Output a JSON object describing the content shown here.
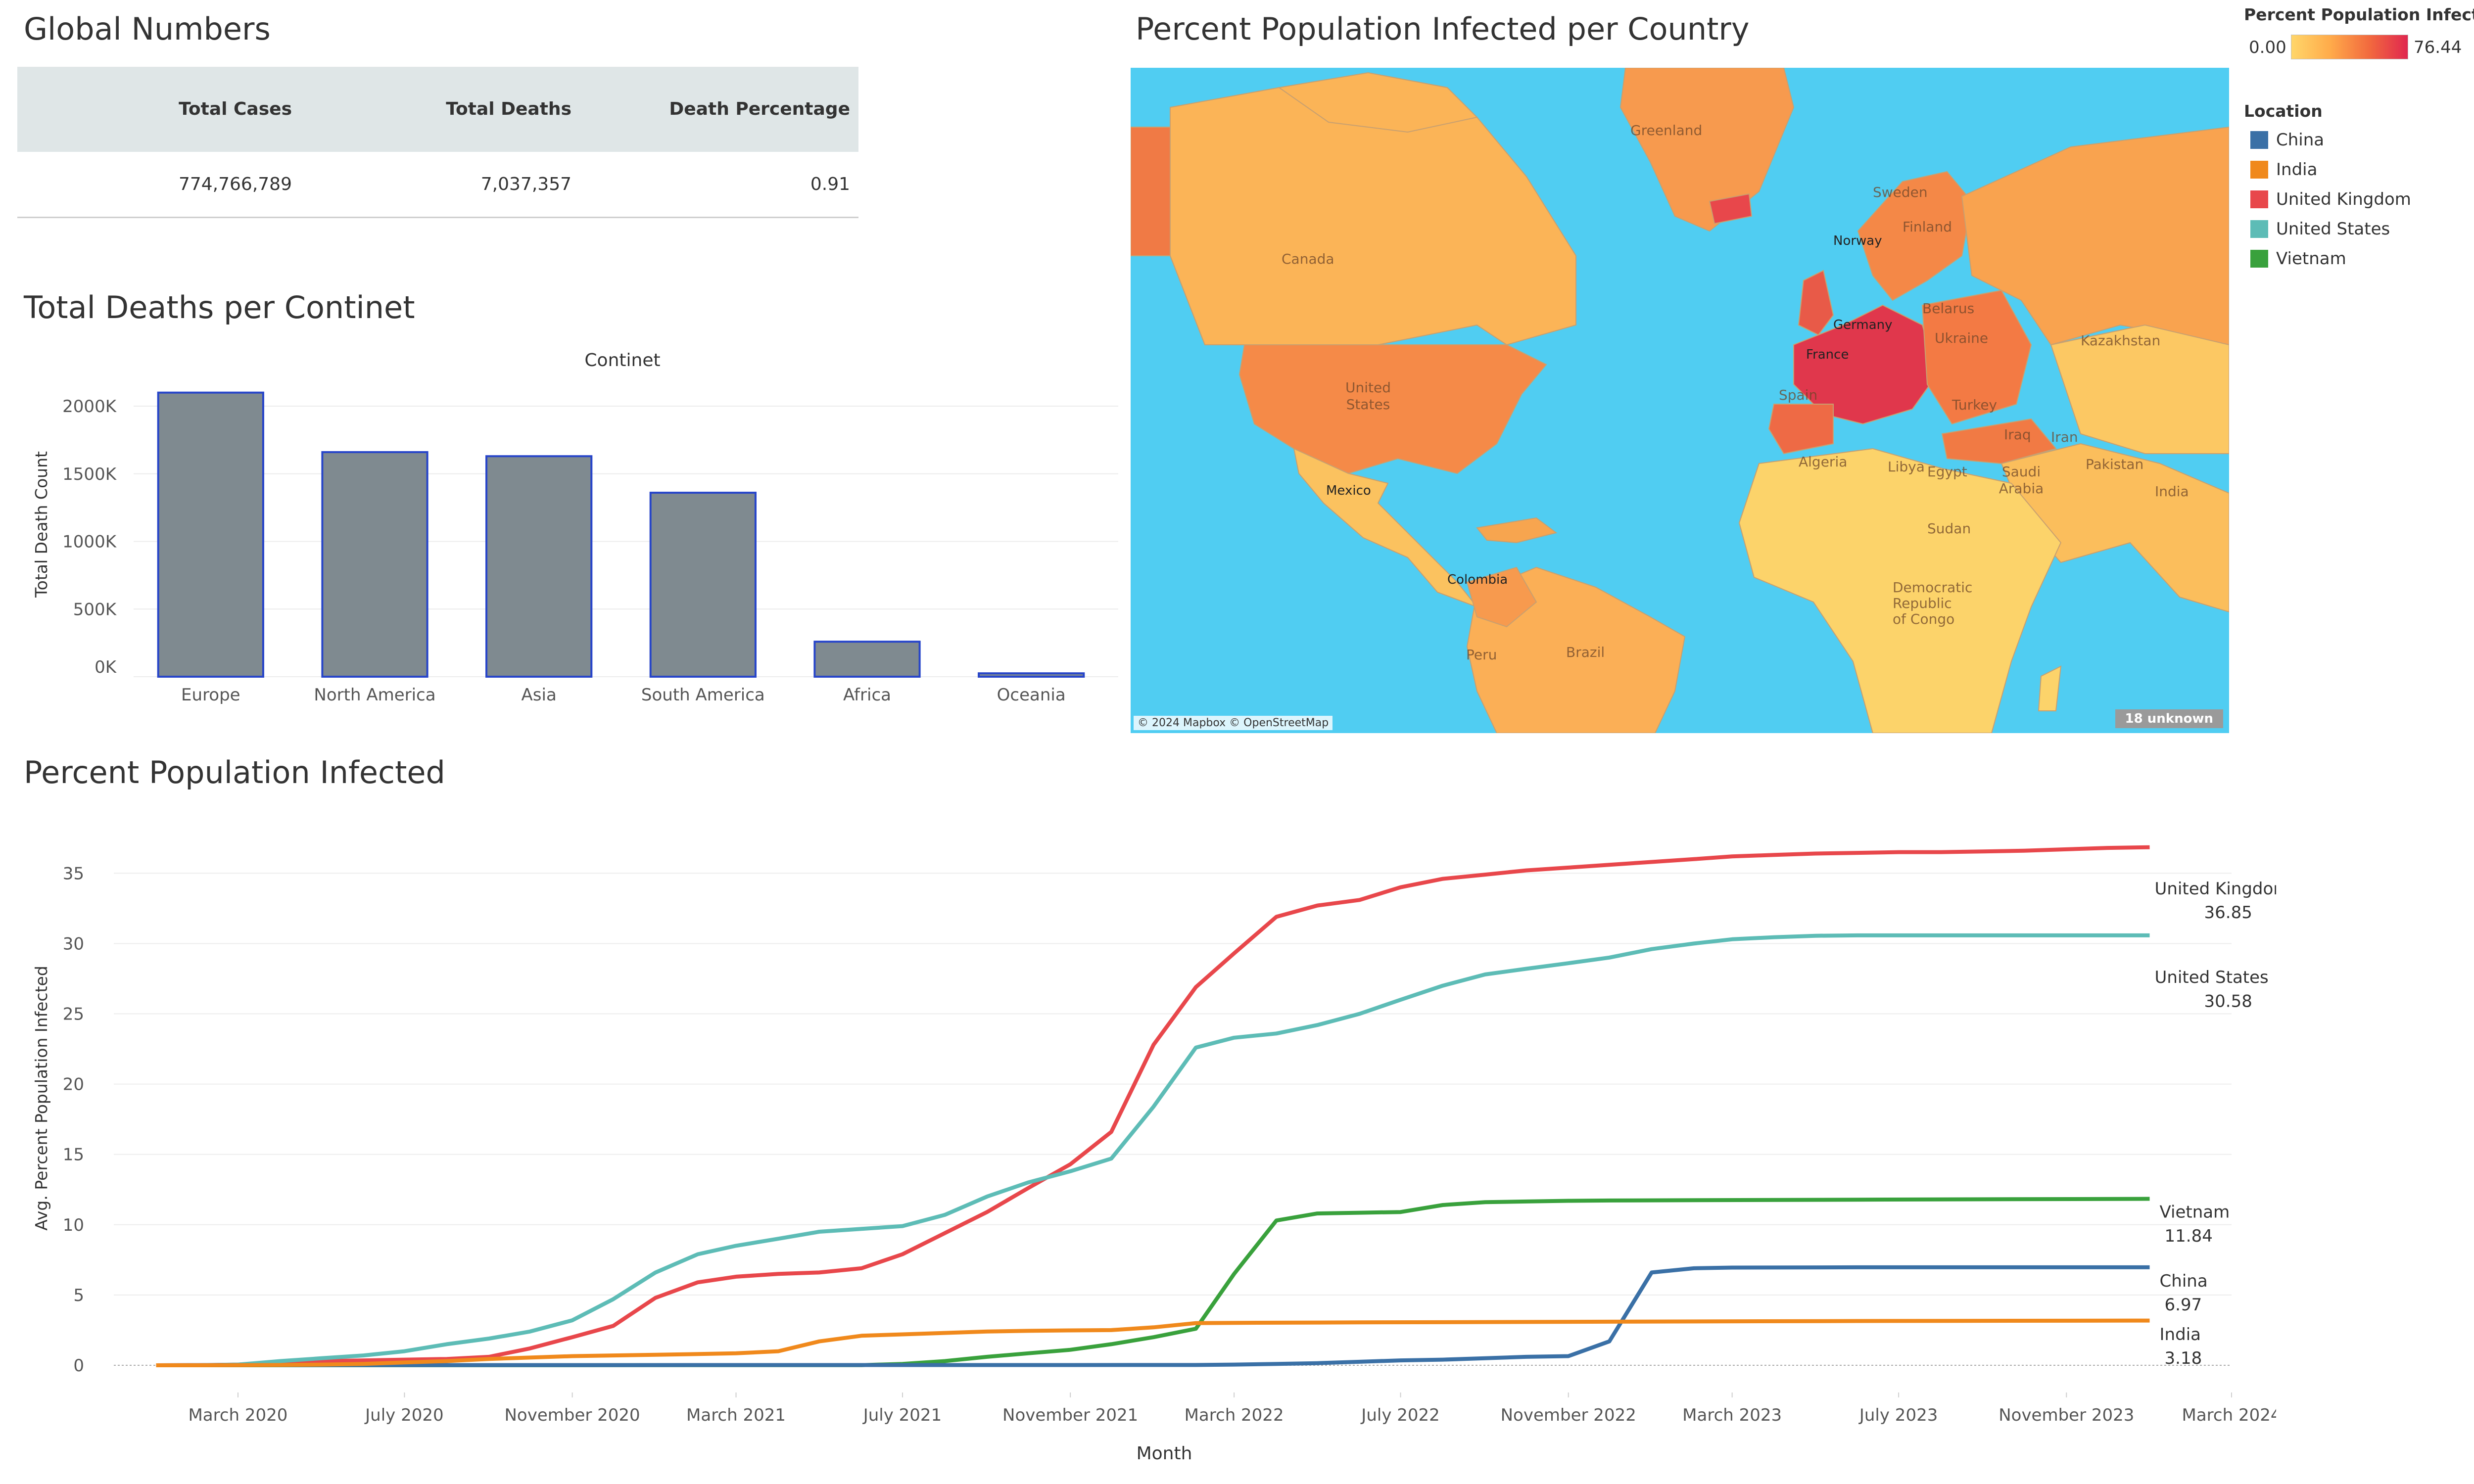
{
  "global_numbers": {
    "title": "Global Numbers",
    "headers": [
      "Total Cases",
      "Total Deaths",
      "Death Percentage"
    ],
    "values": [
      "774,766,789",
      "7,037,357",
      "0.91"
    ]
  },
  "map": {
    "title": "Percent Population Infected per Country",
    "attribution": "© 2024 Mapbox © OpenStreetMap",
    "unknown_badge": "18 unknown",
    "country_labels": [
      "Greenland",
      "Canada",
      "United States",
      "Mexico",
      "Colombia",
      "Peru",
      "Brazil",
      "Sweden",
      "Norway",
      "Finland",
      "Belarus",
      "Germany",
      "Ukraine",
      "France",
      "Spain",
      "Turkey",
      "Algeria",
      "Libya",
      "Egypt",
      "Sudan",
      "Iraq",
      "Iran",
      "Saudi Arabia",
      "Kazakhstan",
      "Pakistan",
      "India",
      "Democratic Republic of Congo"
    ]
  },
  "color_legend": {
    "title": "Percent Population Infect..",
    "min": "0.00",
    "max": "76.44",
    "colors": [
      "#ffd66a",
      "#ffab4a",
      "#f26a3e",
      "#e0274f"
    ]
  },
  "location_legend": {
    "title": "Location",
    "items": [
      {
        "label": "China",
        "color": "#3a70a6"
      },
      {
        "label": "India",
        "color": "#f0891c"
      },
      {
        "label": "United Kingdom",
        "color": "#e8474b"
      },
      {
        "label": "United States",
        "color": "#5dbcb6"
      },
      {
        "label": "Vietnam",
        "color": "#39a13c"
      }
    ]
  },
  "chart_data": [
    {
      "type": "bar",
      "title": "Total Deaths per Continet",
      "header": "Continet",
      "ylabel": "Total Death Count",
      "categories": [
        "Europe",
        "North America",
        "Asia",
        "South America",
        "Africa",
        "Oceania"
      ],
      "values": [
        2100000,
        1660000,
        1630000,
        1360000,
        259000,
        25000
      ],
      "ylim": [
        0,
        2150000
      ],
      "yticks": [
        0,
        500000,
        1000000,
        1500000,
        2000000
      ],
      "ytick_labels": [
        "0K",
        "500K",
        "1000K",
        "1500K",
        "2000K"
      ],
      "bar_color": "#7f8a90",
      "bar_edge_color": "#2745c9"
    },
    {
      "type": "line",
      "title": "Percent Population Infected",
      "xlabel": "Month",
      "ylabel": "Avg. Percent Population Infected",
      "ylim": [
        0,
        38
      ],
      "yticks": [
        0,
        5,
        10,
        15,
        20,
        25,
        30,
        35
      ],
      "x_ticks": [
        "2020-03-01",
        "2020-07-01",
        "2020-11-01",
        "2021-03-01",
        "2021-07-01",
        "2021-11-01",
        "2022-03-01",
        "2022-07-01",
        "2022-11-01",
        "2023-03-01",
        "2023-07-01",
        "2023-11-01",
        "2024-03-01"
      ],
      "x_tick_labels": [
        "March 2020",
        "July 2020",
        "November 2020",
        "March 2021",
        "July 2021",
        "November 2021",
        "March 2022",
        "July 2022",
        "November 2022",
        "March 2023",
        "July 2023",
        "November 2023",
        "March 2024"
      ],
      "xlim": [
        "2019-12-01",
        "2024-03-01"
      ],
      "series": [
        {
          "name": "United Kingdom",
          "color": "#e8474b",
          "end_label": "36.85",
          "points": [
            [
              "2020-01-01",
              0
            ],
            [
              "2020-02-01",
              0.01
            ],
            [
              "2020-03-01",
              0.05
            ],
            [
              "2020-04-01",
              0.2
            ],
            [
              "2020-05-01",
              0.3
            ],
            [
              "2020-06-01",
              0.35
            ],
            [
              "2020-07-01",
              0.4
            ],
            [
              "2020-08-01",
              0.45
            ],
            [
              "2020-09-01",
              0.6
            ],
            [
              "2020-10-01",
              1.2
            ],
            [
              "2020-11-01",
              2.0
            ],
            [
              "2020-12-01",
              2.8
            ],
            [
              "2021-01-01",
              4.8
            ],
            [
              "2021-02-01",
              5.9
            ],
            [
              "2021-03-01",
              6.3
            ],
            [
              "2021-04-01",
              6.5
            ],
            [
              "2021-05-01",
              6.6
            ],
            [
              "2021-06-01",
              6.9
            ],
            [
              "2021-07-01",
              7.9
            ],
            [
              "2021-08-01",
              9.4
            ],
            [
              "2021-09-01",
              10.9
            ],
            [
              "2021-10-01",
              12.6
            ],
            [
              "2021-11-01",
              14.3
            ],
            [
              "2021-12-01",
              16.6
            ],
            [
              "2022-01-01",
              22.8
            ],
            [
              "2022-02-01",
              26.9
            ],
            [
              "2022-03-01",
              29.3
            ],
            [
              "2022-04-01",
              31.9
            ],
            [
              "2022-05-01",
              32.7
            ],
            [
              "2022-06-01",
              33.1
            ],
            [
              "2022-07-01",
              34.0
            ],
            [
              "2022-08-01",
              34.6
            ],
            [
              "2022-09-01",
              34.9
            ],
            [
              "2022-10-01",
              35.2
            ],
            [
              "2022-11-01",
              35.4
            ],
            [
              "2022-12-01",
              35.6
            ],
            [
              "2023-01-01",
              35.8
            ],
            [
              "2023-02-01",
              36.0
            ],
            [
              "2023-03-01",
              36.2
            ],
            [
              "2023-04-01",
              36.3
            ],
            [
              "2023-05-01",
              36.4
            ],
            [
              "2023-06-01",
              36.45
            ],
            [
              "2023-07-01",
              36.5
            ],
            [
              "2023-08-01",
              36.5
            ],
            [
              "2023-09-01",
              36.55
            ],
            [
              "2023-10-01",
              36.6
            ],
            [
              "2023-11-01",
              36.7
            ],
            [
              "2023-12-01",
              36.8
            ],
            [
              "2024-01-01",
              36.85
            ]
          ]
        },
        {
          "name": "United States",
          "color": "#5dbcb6",
          "end_label": "30.58",
          "points": [
            [
              "2020-01-01",
              0
            ],
            [
              "2020-02-01",
              0
            ],
            [
              "2020-03-01",
              0.05
            ],
            [
              "2020-04-01",
              0.3
            ],
            [
              "2020-05-01",
              0.5
            ],
            [
              "2020-06-01",
              0.7
            ],
            [
              "2020-07-01",
              1.0
            ],
            [
              "2020-08-01",
              1.5
            ],
            [
              "2020-09-01",
              1.9
            ],
            [
              "2020-10-01",
              2.4
            ],
            [
              "2020-11-01",
              3.2
            ],
            [
              "2020-12-01",
              4.7
            ],
            [
              "2021-01-01",
              6.6
            ],
            [
              "2021-02-01",
              7.9
            ],
            [
              "2021-03-01",
              8.5
            ],
            [
              "2021-04-01",
              9.0
            ],
            [
              "2021-05-01",
              9.5
            ],
            [
              "2021-06-01",
              9.7
            ],
            [
              "2021-07-01",
              9.9
            ],
            [
              "2021-08-01",
              10.7
            ],
            [
              "2021-09-01",
              12.0
            ],
            [
              "2021-10-01",
              13.0
            ],
            [
              "2021-11-01",
              13.8
            ],
            [
              "2021-12-01",
              14.7
            ],
            [
              "2022-01-01",
              18.4
            ],
            [
              "2022-02-01",
              22.6
            ],
            [
              "2022-03-01",
              23.3
            ],
            [
              "2022-04-01",
              23.6
            ],
            [
              "2022-05-01",
              24.2
            ],
            [
              "2022-06-01",
              25.0
            ],
            [
              "2022-07-01",
              26.0
            ],
            [
              "2022-08-01",
              27.0
            ],
            [
              "2022-09-01",
              27.8
            ],
            [
              "2022-10-01",
              28.2
            ],
            [
              "2022-11-01",
              28.6
            ],
            [
              "2022-12-01",
              29.0
            ],
            [
              "2023-01-01",
              29.6
            ],
            [
              "2023-02-01",
              30.0
            ],
            [
              "2023-03-01",
              30.3
            ],
            [
              "2023-04-01",
              30.45
            ],
            [
              "2023-05-01",
              30.55
            ],
            [
              "2023-06-01",
              30.58
            ],
            [
              "2024-01-01",
              30.58
            ]
          ]
        },
        {
          "name": "Vietnam",
          "color": "#39a13c",
          "end_label": "11.84",
          "points": [
            [
              "2020-01-01",
              0
            ],
            [
              "2021-06-01",
              0.01
            ],
            [
              "2021-07-01",
              0.1
            ],
            [
              "2021-08-01",
              0.3
            ],
            [
              "2021-09-01",
              0.6
            ],
            [
              "2021-10-01",
              0.85
            ],
            [
              "2021-11-01",
              1.1
            ],
            [
              "2021-12-01",
              1.5
            ],
            [
              "2022-01-01",
              2.0
            ],
            [
              "2022-02-01",
              2.6
            ],
            [
              "2022-03-01",
              6.5
            ],
            [
              "2022-04-01",
              10.3
            ],
            [
              "2022-05-01",
              10.8
            ],
            [
              "2022-06-01",
              10.85
            ],
            [
              "2022-07-01",
              10.9
            ],
            [
              "2022-08-01",
              11.4
            ],
            [
              "2022-09-01",
              11.6
            ],
            [
              "2022-10-01",
              11.65
            ],
            [
              "2022-11-01",
              11.7
            ],
            [
              "2022-12-01",
              11.72
            ],
            [
              "2023-06-01",
              11.78
            ],
            [
              "2024-01-01",
              11.84
            ]
          ]
        },
        {
          "name": "China",
          "color": "#3a70a6",
          "end_label": "6.97",
          "points": [
            [
              "2020-01-01",
              0
            ],
            [
              "2020-02-01",
              0.01
            ],
            [
              "2022-02-01",
              0.02
            ],
            [
              "2022-03-01",
              0.05
            ],
            [
              "2022-04-01",
              0.1
            ],
            [
              "2022-05-01",
              0.15
            ],
            [
              "2022-06-01",
              0.25
            ],
            [
              "2022-07-01",
              0.35
            ],
            [
              "2022-08-01",
              0.4
            ],
            [
              "2022-09-01",
              0.5
            ],
            [
              "2022-10-01",
              0.6
            ],
            [
              "2022-11-01",
              0.65
            ],
            [
              "2022-12-01",
              1.7
            ],
            [
              "2023-01-01",
              6.6
            ],
            [
              "2023-02-01",
              6.9
            ],
            [
              "2023-03-01",
              6.95
            ],
            [
              "2023-06-01",
              6.97
            ],
            [
              "2024-01-01",
              6.97
            ]
          ]
        },
        {
          "name": "India",
          "color": "#f0891c",
          "end_label": "3.18",
          "points": [
            [
              "2020-01-01",
              0
            ],
            [
              "2020-02-01",
              0
            ],
            [
              "2020-03-01",
              0.01
            ],
            [
              "2020-04-01",
              0.02
            ],
            [
              "2020-05-01",
              0.05
            ],
            [
              "2020-06-01",
              0.1
            ],
            [
              "2020-07-01",
              0.2
            ],
            [
              "2020-08-01",
              0.3
            ],
            [
              "2020-09-01",
              0.45
            ],
            [
              "2020-10-01",
              0.55
            ],
            [
              "2020-11-01",
              0.65
            ],
            [
              "2020-12-01",
              0.7
            ],
            [
              "2021-01-01",
              0.75
            ],
            [
              "2021-02-01",
              0.8
            ],
            [
              "2021-03-01",
              0.85
            ],
            [
              "2021-04-01",
              1.0
            ],
            [
              "2021-05-01",
              1.7
            ],
            [
              "2021-06-01",
              2.1
            ],
            [
              "2021-07-01",
              2.2
            ],
            [
              "2021-08-01",
              2.3
            ],
            [
              "2021-09-01",
              2.4
            ],
            [
              "2021-10-01",
              2.45
            ],
            [
              "2021-11-01",
              2.48
            ],
            [
              "2021-12-01",
              2.5
            ],
            [
              "2022-01-01",
              2.7
            ],
            [
              "2022-02-01",
              3.0
            ],
            [
              "2022-03-01",
              3.02
            ],
            [
              "2022-06-01",
              3.05
            ],
            [
              "2022-12-01",
              3.1
            ],
            [
              "2023-06-01",
              3.15
            ],
            [
              "2024-01-01",
              3.18
            ]
          ]
        }
      ]
    }
  ]
}
